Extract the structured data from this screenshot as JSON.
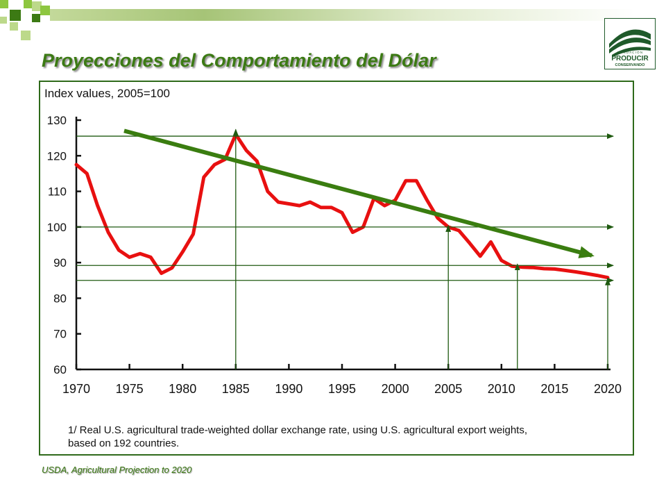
{
  "slide": {
    "title": "Proyecciones del Comportamiento del Dólar",
    "source": "USDA, Agricultural Projection to 2020",
    "accent_color": "#3c7a14"
  },
  "logo": {
    "line1": "F U N D A C I Ó N",
    "line2": "PRODUCIR",
    "line3": "CONSERVANDO",
    "color": "#1f5a2a"
  },
  "chart_data": {
    "type": "line",
    "ylabel": "Index values, 2005=100",
    "footnote_line1": "1/ Real U.S. agricultural trade-weighted dollar exchange rate, using U.S. agricultural export weights,",
    "footnote_line2": "based on 192 countries.",
    "xlim": [
      1970,
      2020
    ],
    "ylim": [
      60,
      130
    ],
    "x_ticks": [
      1970,
      1975,
      1980,
      1985,
      1990,
      1995,
      2000,
      2005,
      2010,
      2015,
      2020
    ],
    "y_ticks": [
      60,
      70,
      80,
      90,
      100,
      110,
      120,
      130
    ],
    "series": [
      {
        "color": "#e81010",
        "x": [
          1970,
          1971,
          1972,
          1973,
          1974,
          1975,
          1976,
          1977,
          1978,
          1979,
          1980,
          1981,
          1982,
          1983,
          1984,
          1985,
          1986,
          1987,
          1988,
          1989,
          1990,
          1991,
          1992,
          1993,
          1994,
          1995,
          1996,
          1997,
          1998,
          1999,
          2000,
          2001,
          2002,
          2003,
          2004,
          2005,
          2006,
          2007,
          2008,
          2009,
          2010,
          2011,
          2012,
          2013,
          2014,
          2015,
          2016,
          2017,
          2018,
          2019,
          2020
        ],
        "values": [
          117.5,
          115,
          106,
          98.5,
          93.5,
          91.5,
          92.5,
          91.5,
          87,
          88.5,
          93,
          98,
          114,
          117.5,
          119,
          126,
          121.5,
          118.5,
          110,
          107,
          106.5,
          106,
          107,
          105.5,
          105.5,
          104,
          98.5,
          100,
          108,
          106,
          107.5,
          113,
          113,
          107.5,
          102.5,
          100,
          99,
          95.5,
          91.8,
          95.8,
          90.6,
          89,
          88.7,
          88.6,
          88.3,
          88.2,
          87.8,
          87.4,
          86.9,
          86.4,
          85.8
        ]
      }
    ],
    "annotations": {
      "arrow_color": "#1f5a10",
      "trend_color": "#3a7d10",
      "horizontal_levels": [
        125.5,
        100,
        89.2,
        85
      ],
      "vertical_years": [
        1985,
        2005,
        2011.5,
        2020
      ],
      "vertical_targets": [
        127,
        100,
        89.2,
        85
      ],
      "trend_start": [
        1974.5,
        127
      ],
      "trend_end": [
        2018.5,
        92
      ]
    }
  }
}
